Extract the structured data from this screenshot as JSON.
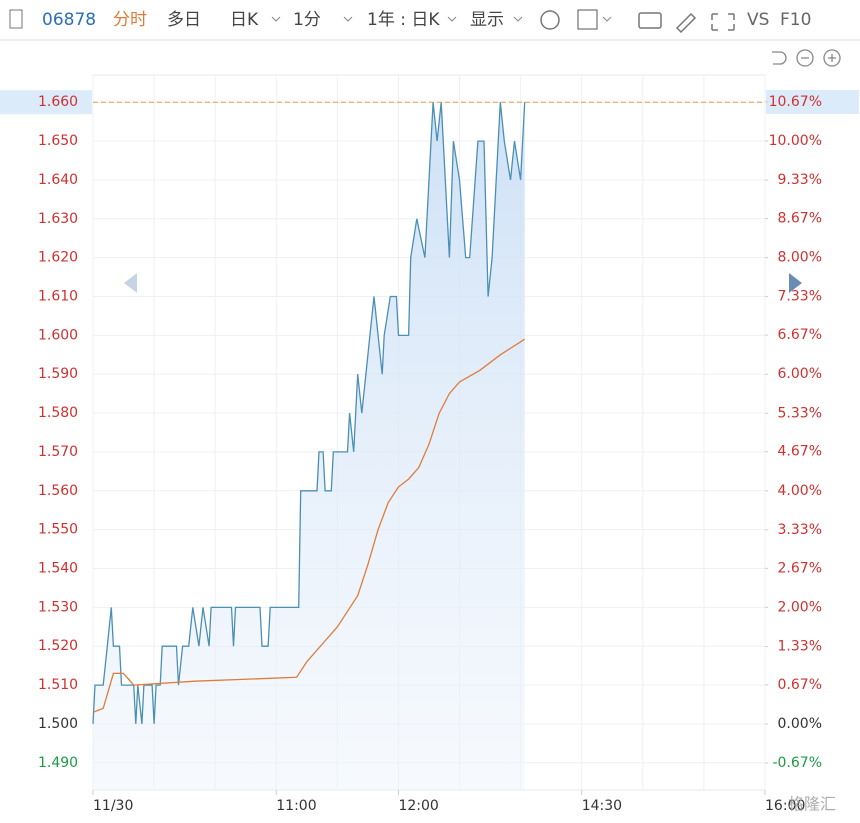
{
  "toolbar": {
    "code": "06878",
    "tabs": [
      "分时",
      "多日",
      "日K",
      "1分",
      "1年 : 日K",
      "显示"
    ],
    "tools": [
      "VS",
      "F10"
    ]
  },
  "watermark": "格隆汇",
  "chart_data": {
    "type": "line",
    "xlim": [
      0,
      330
    ],
    "xticks": [
      {
        "value": 0,
        "label": "11/30"
      },
      {
        "value": 90,
        "label": "11:00"
      },
      {
        "value": 150,
        "label": "12:00"
      },
      {
        "value": 240,
        "label": "14:30"
      },
      {
        "value": 330,
        "label": "16:00"
      }
    ],
    "x_grid_lines": [
      30,
      60,
      120,
      180,
      210,
      270,
      300
    ],
    "ylim": [
      1.483,
      1.667
    ],
    "yticks": [
      {
        "value": 1.49,
        "label": "1.490"
      },
      {
        "value": 1.5,
        "label": "1.500"
      },
      {
        "value": 1.51,
        "label": "1.510"
      },
      {
        "value": 1.52,
        "label": "1.520"
      },
      {
        "value": 1.53,
        "label": "1.530"
      },
      {
        "value": 1.54,
        "label": "1.540"
      },
      {
        "value": 1.55,
        "label": "1.550"
      },
      {
        "value": 1.56,
        "label": "1.560"
      },
      {
        "value": 1.57,
        "label": "1.570"
      },
      {
        "value": 1.58,
        "label": "1.580"
      },
      {
        "value": 1.59,
        "label": "1.590"
      },
      {
        "value": 1.6,
        "label": "1.600"
      },
      {
        "value": 1.61,
        "label": "1.610"
      },
      {
        "value": 1.62,
        "label": "1.620"
      },
      {
        "value": 1.63,
        "label": "1.630"
      },
      {
        "value": 1.64,
        "label": "1.640"
      },
      {
        "value": 1.65,
        "label": "1.650"
      },
      {
        "value": 1.66,
        "label": "1.660"
      }
    ],
    "y2lim": [
      -1.133,
      11.133
    ],
    "y2ticks": [
      {
        "value": -0.67,
        "label": "-0.67%"
      },
      {
        "value": 0,
        "label": "0.00%"
      },
      {
        "value": 0.67,
        "label": "0.67%"
      },
      {
        "value": 1.33,
        "label": "1.33%"
      },
      {
        "value": 2,
        "label": "2.00%"
      },
      {
        "value": 2.67,
        "label": "2.67%"
      },
      {
        "value": 3.33,
        "label": "3.33%"
      },
      {
        "value": 4,
        "label": "4.00%"
      },
      {
        "value": 4.67,
        "label": "4.67%"
      },
      {
        "value": 5.33,
        "label": "5.33%"
      },
      {
        "value": 6,
        "label": "6.00%"
      },
      {
        "value": 6.67,
        "label": "6.67%"
      },
      {
        "value": 7.33,
        "label": "7.33%"
      },
      {
        "value": 8,
        "label": "8.00%"
      },
      {
        "value": 8.67,
        "label": "8.67%"
      },
      {
        "value": 9.33,
        "label": "9.33%"
      },
      {
        "value": 10,
        "label": "10.00%"
      },
      {
        "value": 10.67,
        "label": "10.67%"
      }
    ],
    "base_value": 1.5,
    "tick_colors": {
      "up": "#d0302f",
      "flat": "#333333",
      "down": "#1e9b46"
    },
    "ref_line": 1.66,
    "ref_color": "#e09a50",
    "grid": true,
    "series": [
      {
        "color": "#4a8fb5",
        "area": true,
        "x": [
          0,
          1,
          5,
          7,
          9,
          10,
          13,
          14,
          20,
          21,
          22,
          24,
          25,
          29,
          30,
          31,
          33,
          34,
          41,
          42,
          44,
          47,
          49,
          52,
          54,
          57,
          58,
          68,
          69,
          70,
          82,
          83,
          86,
          87,
          101,
          102,
          110,
          111,
          113,
          114,
          117,
          118,
          125,
          126,
          128,
          130,
          132,
          134,
          136,
          138,
          140,
          142,
          143,
          146,
          149,
          150,
          155,
          156,
          159,
          163,
          165,
          167,
          169,
          171,
          173,
          175,
          177,
          180,
          183,
          185,
          189,
          192,
          194,
          196,
          200,
          202,
          205,
          207,
          210,
          212
        ],
        "values": [
          1.5,
          1.51,
          1.51,
          1.52,
          1.53,
          1.52,
          1.52,
          1.51,
          1.51,
          1.5,
          1.51,
          1.5,
          1.51,
          1.51,
          1.5,
          1.51,
          1.51,
          1.52,
          1.52,
          1.51,
          1.52,
          1.52,
          1.53,
          1.52,
          1.53,
          1.52,
          1.53,
          1.53,
          1.52,
          1.53,
          1.53,
          1.52,
          1.52,
          1.53,
          1.53,
          1.56,
          1.56,
          1.57,
          1.57,
          1.56,
          1.56,
          1.57,
          1.57,
          1.58,
          1.57,
          1.59,
          1.58,
          1.59,
          1.6,
          1.61,
          1.6,
          1.59,
          1.6,
          1.61,
          1.61,
          1.6,
          1.6,
          1.62,
          1.63,
          1.62,
          1.64,
          1.66,
          1.65,
          1.66,
          1.64,
          1.62,
          1.65,
          1.64,
          1.62,
          1.62,
          1.65,
          1.65,
          1.61,
          1.62,
          1.66,
          1.65,
          1.64,
          1.65,
          1.64,
          1.66
        ]
      },
      {
        "color": "#e07b39",
        "area": false,
        "x": [
          0,
          5,
          10,
          15,
          20,
          50,
          100,
          105,
          110,
          115,
          120,
          125,
          130,
          135,
          140,
          145,
          150,
          155,
          160,
          165,
          170,
          175,
          180,
          190,
          200,
          212
        ],
        "values": [
          1.503,
          1.504,
          1.513,
          1.513,
          1.51,
          1.511,
          1.512,
          1.516,
          1.519,
          1.522,
          1.525,
          1.529,
          1.533,
          1.541,
          1.55,
          1.557,
          1.561,
          1.563,
          1.566,
          1.572,
          1.58,
          1.585,
          1.588,
          1.591,
          1.595,
          1.599
        ]
      }
    ]
  }
}
